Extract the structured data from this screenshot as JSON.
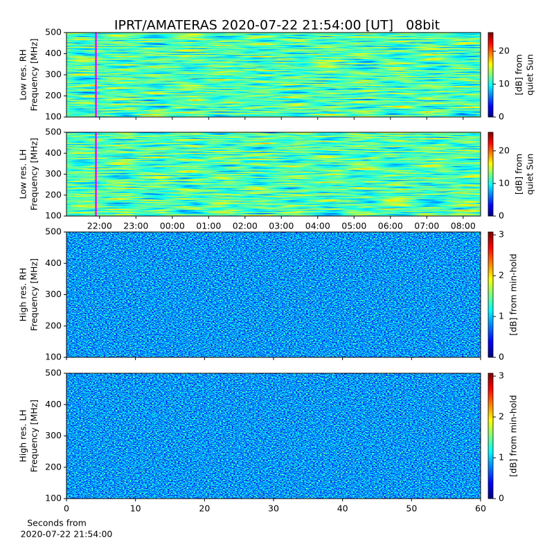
{
  "chart_data": [
    {
      "type": "heatmap",
      "title": "IPRT/AMATERAS 2020-07-22 21:54:00 [UT]   08bit",
      "ylabel": [
        "Low res. RH",
        "Frequency [MHz]"
      ],
      "xlim": [
        21.09,
        32.48
      ],
      "xticks": [
        22,
        23,
        24,
        25,
        26,
        27,
        28,
        29,
        30,
        31,
        32
      ],
      "xtick_labels": false,
      "ylim": [
        100,
        500
      ],
      "yticks": [
        100,
        200,
        300,
        400,
        500
      ],
      "clim": [
        0,
        25.7
      ],
      "cticks": [
        0,
        10,
        20
      ],
      "clabel": [
        "[dB] from",
        "quiet Sun"
      ],
      "colormap": "jet",
      "marker": 21.9,
      "marker_color": "#ff00ff"
    },
    {
      "type": "heatmap",
      "ylabel": [
        "Low res. LH",
        "Frequency [MHz]"
      ],
      "xlim": [
        21.09,
        32.48
      ],
      "xticks": [
        {
          "value": 22,
          "label": "22:00"
        },
        {
          "value": 23,
          "label": "23:00"
        },
        {
          "value": 24,
          "label": "00:00"
        },
        {
          "value": 25,
          "label": "01:00"
        },
        {
          "value": 26,
          "label": "02:00"
        },
        {
          "value": 27,
          "label": "03:00"
        },
        {
          "value": 28,
          "label": "04:00"
        },
        {
          "value": 29,
          "label": "05:00"
        },
        {
          "value": 30,
          "label": "06:00"
        },
        {
          "value": 31,
          "label": "07:00"
        },
        {
          "value": 32,
          "label": "08:00"
        }
      ],
      "xtick_labels": true,
      "ylim": [
        100,
        500
      ],
      "yticks": [
        100,
        200,
        300,
        400,
        500
      ],
      "clim": [
        0,
        25.7
      ],
      "cticks": [
        0,
        10,
        20
      ],
      "clabel": [
        "[dB] from",
        "quiet Sun"
      ],
      "colormap": "jet",
      "marker": 21.9,
      "marker_color": "#ff00ff"
    },
    {
      "type": "heatmap",
      "ylabel": [
        "High res. RH",
        "Frequency [MHz]"
      ],
      "xlim": [
        0,
        60
      ],
      "xticks": [
        0,
        10,
        20,
        30,
        40,
        50,
        60
      ],
      "xtick_labels": false,
      "ylim": [
        100,
        500
      ],
      "yticks": [
        100,
        200,
        300,
        400,
        500
      ],
      "clim": [
        0,
        3.07
      ],
      "cticks": [
        0,
        1,
        2,
        3
      ],
      "clabel": [
        "[dB] from min-hold"
      ],
      "colormap": "jet"
    },
    {
      "type": "heatmap",
      "ylabel": [
        "High res. LH",
        "Frequency [MHz]"
      ],
      "xlim": [
        0,
        60
      ],
      "xticks": [
        0,
        10,
        20,
        30,
        40,
        50,
        60
      ],
      "xtick_labels": true,
      "xlabel": [
        "Seconds from",
        "2020-07-22 21:54:00"
      ],
      "ylim": [
        100,
        500
      ],
      "yticks": [
        100,
        200,
        300,
        400,
        500
      ],
      "clim": [
        0,
        3.07
      ],
      "cticks": [
        0,
        1,
        2,
        3
      ],
      "clabel": [
        "[dB] from min-hold"
      ],
      "colormap": "jet"
    }
  ]
}
